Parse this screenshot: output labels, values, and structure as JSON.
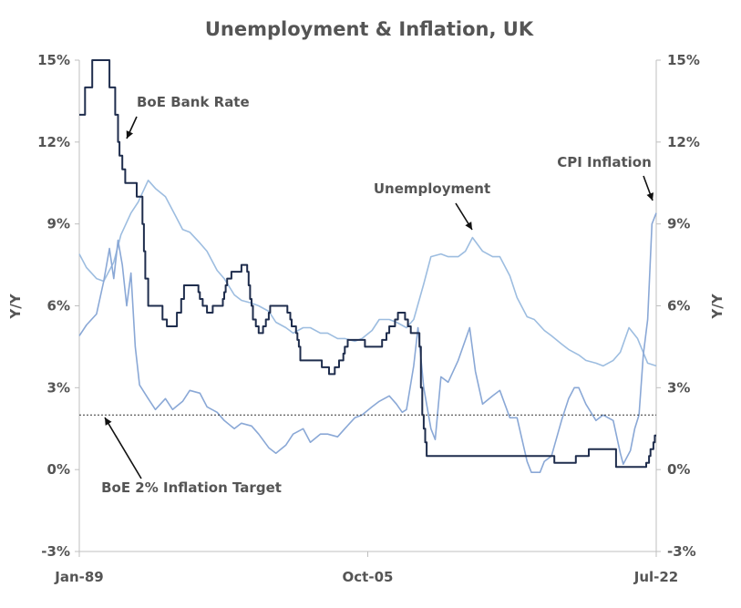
{
  "chart_data": {
    "type": "line",
    "title": "Unemployment & Inflation, UK",
    "ylabel_left": "Y/Y",
    "ylabel_right": "Y/Y",
    "ylim": [
      -3,
      15
    ],
    "y_ticks": [
      "-3%",
      "0%",
      "3%",
      "6%",
      "9%",
      "12%",
      "15%"
    ],
    "x_range": [
      "1989-01",
      "2022-07"
    ],
    "x_ticks": [
      {
        "date": "1989-01",
        "label": "Jan-89"
      },
      {
        "date": "2005-10",
        "label": "Oct-05"
      },
      {
        "date": "2022-07",
        "label": "Jul-22"
      }
    ],
    "grid": false,
    "legend": "none",
    "reference_lines": [
      {
        "value": 2,
        "style": "dotted",
        "color": "#333333"
      }
    ],
    "annotations": [
      {
        "text": "BoE Bank Rate",
        "series": "BoE Bank Rate"
      },
      {
        "text": "Unemployment",
        "series": "Unemployment"
      },
      {
        "text": "CPI Inflation",
        "series": "CPI Inflation"
      },
      {
        "text": "BoE 2% Inflation Target",
        "series": "BoE 2% Inflation Target"
      }
    ],
    "series": [
      {
        "name": "BoE Bank Rate",
        "color": "#1f2d4d",
        "step": true,
        "points": [
          [
            "1989-01",
            13.0
          ],
          [
            "1989-05",
            14.0
          ],
          [
            "1989-10",
            15.0
          ],
          [
            "1990-10",
            14.0
          ],
          [
            "1991-02",
            13.0
          ],
          [
            "1991-04",
            12.0
          ],
          [
            "1991-05",
            11.5
          ],
          [
            "1991-07",
            11.0
          ],
          [
            "1991-09",
            10.5
          ],
          [
            "1992-05",
            10.0
          ],
          [
            "1992-09",
            9.0
          ],
          [
            "1992-10",
            8.0
          ],
          [
            "1992-11",
            7.0
          ],
          [
            "1993-01",
            6.0
          ],
          [
            "1993-11",
            5.5
          ],
          [
            "1994-02",
            5.25
          ],
          [
            "1994-09",
            5.75
          ],
          [
            "1994-12",
            6.25
          ],
          [
            "1995-02",
            6.75
          ],
          [
            "1995-12",
            6.5
          ],
          [
            "1996-01",
            6.25
          ],
          [
            "1996-03",
            6.0
          ],
          [
            "1996-06",
            5.75
          ],
          [
            "1996-10",
            6.0
          ],
          [
            "1997-05",
            6.25
          ],
          [
            "1997-06",
            6.5
          ],
          [
            "1997-07",
            6.75
          ],
          [
            "1997-08",
            7.0
          ],
          [
            "1997-11",
            7.25
          ],
          [
            "1998-06",
            7.5
          ],
          [
            "1998-10",
            7.25
          ],
          [
            "1998-11",
            6.75
          ],
          [
            "1998-12",
            6.25
          ],
          [
            "1999-01",
            6.0
          ],
          [
            "1999-02",
            5.5
          ],
          [
            "1999-04",
            5.25
          ],
          [
            "1999-06",
            5.0
          ],
          [
            "1999-09",
            5.25
          ],
          [
            "1999-11",
            5.5
          ],
          [
            "2000-01",
            5.75
          ],
          [
            "2000-02",
            6.0
          ],
          [
            "2001-02",
            5.75
          ],
          [
            "2001-04",
            5.5
          ],
          [
            "2001-05",
            5.25
          ],
          [
            "2001-08",
            5.0
          ],
          [
            "2001-09",
            4.75
          ],
          [
            "2001-10",
            4.5
          ],
          [
            "2001-11",
            4.0
          ],
          [
            "2003-02",
            3.75
          ],
          [
            "2003-07",
            3.5
          ],
          [
            "2003-11",
            3.75
          ],
          [
            "2004-02",
            4.0
          ],
          [
            "2004-05",
            4.25
          ],
          [
            "2004-06",
            4.5
          ],
          [
            "2004-08",
            4.75
          ],
          [
            "2005-08",
            4.5
          ],
          [
            "2006-08",
            4.75
          ],
          [
            "2006-11",
            5.0
          ],
          [
            "2007-01",
            5.25
          ],
          [
            "2007-05",
            5.5
          ],
          [
            "2007-07",
            5.75
          ],
          [
            "2007-12",
            5.5
          ],
          [
            "2008-02",
            5.25
          ],
          [
            "2008-04",
            5.0
          ],
          [
            "2008-10",
            4.5
          ],
          [
            "2008-11",
            3.0
          ],
          [
            "2008-12",
            2.0
          ],
          [
            "2009-01",
            1.5
          ],
          [
            "2009-02",
            1.0
          ],
          [
            "2009-03",
            0.5
          ],
          [
            "2016-08",
            0.25
          ],
          [
            "2017-11",
            0.5
          ],
          [
            "2018-08",
            0.75
          ],
          [
            "2020-03",
            0.1
          ],
          [
            "2021-12",
            0.25
          ],
          [
            "2022-02",
            0.5
          ],
          [
            "2022-03",
            0.75
          ],
          [
            "2022-05",
            1.0
          ],
          [
            "2022-06",
            1.25
          ],
          [
            "2022-07",
            1.25
          ]
        ]
      },
      {
        "name": "Unemployment",
        "color": "#9dbde0",
        "step": false,
        "points": [
          [
            "1989-01",
            7.9
          ],
          [
            "1989-06",
            7.4
          ],
          [
            "1990-01",
            7.0
          ],
          [
            "1990-06",
            6.9
          ],
          [
            "1991-01",
            7.6
          ],
          [
            "1991-06",
            8.6
          ],
          [
            "1992-01",
            9.4
          ],
          [
            "1992-06",
            9.8
          ],
          [
            "1993-01",
            10.6
          ],
          [
            "1993-06",
            10.3
          ],
          [
            "1994-01",
            10.0
          ],
          [
            "1994-06",
            9.5
          ],
          [
            "1995-01",
            8.8
          ],
          [
            "1995-06",
            8.7
          ],
          [
            "1996-01",
            8.3
          ],
          [
            "1996-06",
            8.0
          ],
          [
            "1997-01",
            7.3
          ],
          [
            "1997-06",
            7.0
          ],
          [
            "1998-01",
            6.4
          ],
          [
            "1998-06",
            6.2
          ],
          [
            "1999-01",
            6.1
          ],
          [
            "1999-06",
            6.0
          ],
          [
            "2000-01",
            5.8
          ],
          [
            "2000-06",
            5.4
          ],
          [
            "2001-01",
            5.2
          ],
          [
            "2001-06",
            5.0
          ],
          [
            "2002-01",
            5.2
          ],
          [
            "2002-06",
            5.2
          ],
          [
            "2003-01",
            5.0
          ],
          [
            "2003-06",
            5.0
          ],
          [
            "2004-01",
            4.8
          ],
          [
            "2004-06",
            4.8
          ],
          [
            "2005-01",
            4.7
          ],
          [
            "2005-06",
            4.8
          ],
          [
            "2006-01",
            5.1
          ],
          [
            "2006-06",
            5.5
          ],
          [
            "2007-01",
            5.5
          ],
          [
            "2007-06",
            5.4
          ],
          [
            "2008-01",
            5.2
          ],
          [
            "2008-06",
            5.5
          ],
          [
            "2009-01",
            6.8
          ],
          [
            "2009-06",
            7.8
          ],
          [
            "2010-01",
            7.9
          ],
          [
            "2010-06",
            7.8
          ],
          [
            "2011-01",
            7.8
          ],
          [
            "2011-06",
            8.0
          ],
          [
            "2011-11",
            8.5
          ],
          [
            "2012-06",
            8.0
          ],
          [
            "2013-01",
            7.8
          ],
          [
            "2013-06",
            7.8
          ],
          [
            "2014-01",
            7.1
          ],
          [
            "2014-06",
            6.3
          ],
          [
            "2015-01",
            5.6
          ],
          [
            "2015-06",
            5.5
          ],
          [
            "2016-01",
            5.1
          ],
          [
            "2016-06",
            4.9
          ],
          [
            "2017-01",
            4.6
          ],
          [
            "2017-06",
            4.4
          ],
          [
            "2018-01",
            4.2
          ],
          [
            "2018-06",
            4.0
          ],
          [
            "2019-01",
            3.9
          ],
          [
            "2019-06",
            3.8
          ],
          [
            "2020-01",
            4.0
          ],
          [
            "2020-06",
            4.3
          ],
          [
            "2020-12",
            5.2
          ],
          [
            "2021-06",
            4.8
          ],
          [
            "2022-01",
            3.9
          ],
          [
            "2022-07",
            3.8
          ]
        ]
      },
      {
        "name": "CPI Inflation",
        "color": "#8aa8d6",
        "step": false,
        "points": [
          [
            "1989-01",
            4.9
          ],
          [
            "1989-06",
            5.3
          ],
          [
            "1990-01",
            5.7
          ],
          [
            "1990-06",
            6.9
          ],
          [
            "1990-10",
            8.1
          ],
          [
            "1991-01",
            7.0
          ],
          [
            "1991-04",
            8.4
          ],
          [
            "1991-07",
            7.5
          ],
          [
            "1991-10",
            6.0
          ],
          [
            "1992-01",
            7.2
          ],
          [
            "1992-04",
            4.5
          ],
          [
            "1992-07",
            3.1
          ],
          [
            "1993-01",
            2.6
          ],
          [
            "1993-06",
            2.2
          ],
          [
            "1994-01",
            2.6
          ],
          [
            "1994-06",
            2.2
          ],
          [
            "1995-01",
            2.5
          ],
          [
            "1995-06",
            2.9
          ],
          [
            "1996-01",
            2.8
          ],
          [
            "1996-06",
            2.3
          ],
          [
            "1997-01",
            2.1
          ],
          [
            "1997-06",
            1.8
          ],
          [
            "1998-01",
            1.5
          ],
          [
            "1998-06",
            1.7
          ],
          [
            "1999-01",
            1.6
          ],
          [
            "1999-06",
            1.3
          ],
          [
            "2000-01",
            0.8
          ],
          [
            "2000-06",
            0.6
          ],
          [
            "2001-01",
            0.9
          ],
          [
            "2001-06",
            1.3
          ],
          [
            "2002-01",
            1.5
          ],
          [
            "2002-06",
            1.0
          ],
          [
            "2003-01",
            1.3
          ],
          [
            "2003-06",
            1.3
          ],
          [
            "2004-01",
            1.2
          ],
          [
            "2004-06",
            1.5
          ],
          [
            "2005-01",
            1.9
          ],
          [
            "2005-06",
            2.0
          ],
          [
            "2006-01",
            2.3
          ],
          [
            "2006-06",
            2.5
          ],
          [
            "2007-01",
            2.7
          ],
          [
            "2007-06",
            2.4
          ],
          [
            "2007-10",
            2.1
          ],
          [
            "2008-01",
            2.2
          ],
          [
            "2008-06",
            3.8
          ],
          [
            "2008-09",
            5.2
          ],
          [
            "2009-01",
            3.0
          ],
          [
            "2009-06",
            1.5
          ],
          [
            "2009-09",
            1.1
          ],
          [
            "2010-01",
            3.4
          ],
          [
            "2010-06",
            3.2
          ],
          [
            "2011-01",
            4.0
          ],
          [
            "2011-09",
            5.2
          ],
          [
            "2012-01",
            3.6
          ],
          [
            "2012-06",
            2.4
          ],
          [
            "2013-01",
            2.7
          ],
          [
            "2013-06",
            2.9
          ],
          [
            "2014-01",
            1.9
          ],
          [
            "2014-06",
            1.9
          ],
          [
            "2015-01",
            0.3
          ],
          [
            "2015-04",
            -0.1
          ],
          [
            "2015-10",
            -0.1
          ],
          [
            "2016-01",
            0.3
          ],
          [
            "2016-06",
            0.5
          ],
          [
            "2017-01",
            1.8
          ],
          [
            "2017-06",
            2.6
          ],
          [
            "2017-10",
            3.0
          ],
          [
            "2018-01",
            3.0
          ],
          [
            "2018-06",
            2.4
          ],
          [
            "2019-01",
            1.8
          ],
          [
            "2019-06",
            2.0
          ],
          [
            "2020-01",
            1.8
          ],
          [
            "2020-06",
            0.6
          ],
          [
            "2020-08",
            0.2
          ],
          [
            "2021-01",
            0.7
          ],
          [
            "2021-04",
            1.5
          ],
          [
            "2021-07",
            2.0
          ],
          [
            "2021-10",
            4.2
          ],
          [
            "2022-01",
            5.5
          ],
          [
            "2022-04",
            9.0
          ],
          [
            "2022-07",
            9.4
          ]
        ]
      },
      {
        "name": "BoE 2% Inflation Target",
        "color": "#333333",
        "step": false,
        "points": [
          [
            "1989-01",
            2.0
          ],
          [
            "2022-07",
            2.0
          ]
        ]
      }
    ]
  }
}
